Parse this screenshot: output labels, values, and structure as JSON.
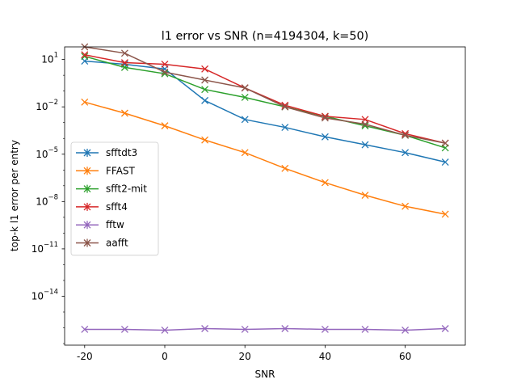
{
  "chart_data": {
    "type": "line",
    "title": "l1 error vs SNR (n=4194304, k=50)",
    "xlabel": "SNR",
    "ylabel": "top-k l1 error per entry",
    "yscale": "log",
    "xlim": [
      -25,
      75
    ],
    "ylim_log10": [
      -17.1,
      1.8
    ],
    "x": [
      -20,
      -10,
      0,
      10,
      20,
      30,
      40,
      50,
      60,
      70
    ],
    "xticks": [
      -20,
      0,
      20,
      40,
      60
    ],
    "xtick_labels": [
      "-20",
      "0",
      "20",
      "40",
      "60"
    ],
    "yticks_log10": [
      1,
      -2,
      -5,
      -8,
      -11,
      -14
    ],
    "ytick_labels": [
      {
        "base": "10",
        "exp": "1"
      },
      {
        "base": "10",
        "exp": "−2"
      },
      {
        "base": "10",
        "exp": "−5"
      },
      {
        "base": "10",
        "exp": "−8"
      },
      {
        "base": "10",
        "exp": "−11"
      },
      {
        "base": "10",
        "exp": "−14"
      }
    ],
    "legend_position": "center-left",
    "grid": false,
    "series": [
      {
        "name": "sfftdt3",
        "color": "#1f77b4",
        "log10_values": [
          0.9,
          0.7,
          0.4,
          -1.6,
          -2.8,
          -3.3,
          -3.9,
          -4.4,
          -4.9,
          -5.5
        ]
      },
      {
        "name": "FFAST",
        "color": "#ff7f0e",
        "log10_values": [
          -1.7,
          -2.4,
          -3.2,
          -4.1,
          -4.9,
          -5.9,
          -6.8,
          -7.6,
          -8.3,
          -8.8
        ]
      },
      {
        "name": "sfft2-mit",
        "color": "#2ca02c",
        "log10_values": [
          1.2,
          0.5,
          0.1,
          -0.9,
          -1.4,
          -2.0,
          -2.6,
          -3.2,
          -3.8,
          -4.6
        ]
      },
      {
        "name": "sfft4",
        "color": "#d62728",
        "log10_values": [
          1.3,
          0.8,
          0.7,
          0.4,
          -0.8,
          -1.9,
          -2.6,
          -2.8,
          -3.7,
          -4.3
        ]
      },
      {
        "name": "fftw",
        "color": "#9467bd",
        "log10_values": [
          -16.1,
          -16.1,
          -16.15,
          -16.05,
          -16.1,
          -16.05,
          -16.1,
          -16.1,
          -16.15,
          -16.05
        ]
      },
      {
        "name": "aafft",
        "color": "#8c564b",
        "log10_values": [
          1.8,
          1.4,
          0.2,
          -0.3,
          -0.8,
          -2.0,
          -2.7,
          -3.1,
          -3.8,
          -4.3
        ]
      }
    ]
  }
}
